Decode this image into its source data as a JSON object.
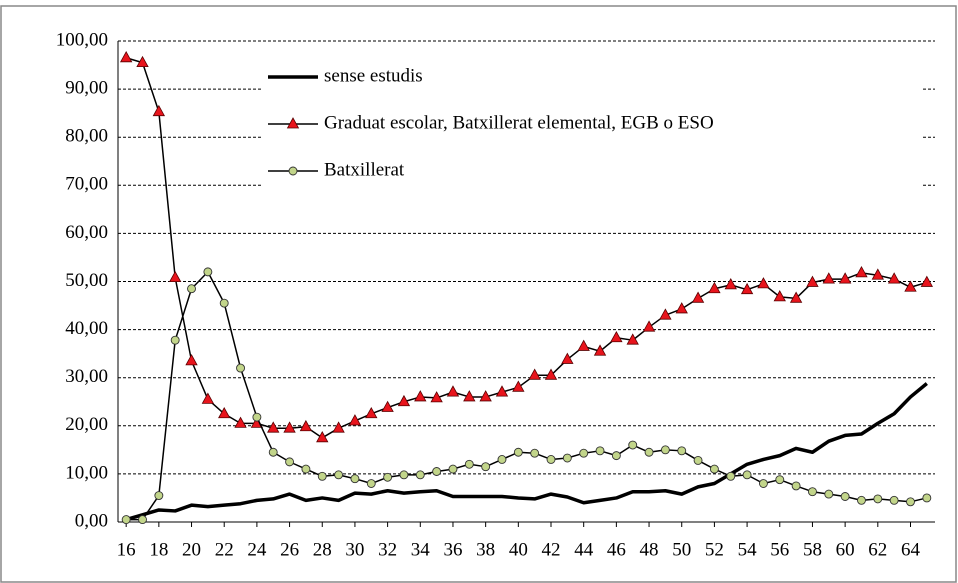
{
  "chart_data": {
    "type": "line",
    "x": [
      16,
      17,
      18,
      19,
      20,
      21,
      22,
      23,
      24,
      25,
      26,
      27,
      28,
      29,
      30,
      31,
      32,
      33,
      34,
      35,
      36,
      37,
      38,
      39,
      40,
      41,
      42,
      43,
      44,
      45,
      46,
      47,
      48,
      49,
      50,
      51,
      52,
      53,
      54,
      55,
      56,
      57,
      58,
      59,
      60,
      61,
      62,
      63,
      64,
      65
    ],
    "xlim": [
      15.5,
      65.5
    ],
    "xticks": [
      16,
      18,
      20,
      22,
      24,
      26,
      28,
      30,
      32,
      34,
      36,
      38,
      40,
      42,
      44,
      46,
      48,
      50,
      52,
      54,
      56,
      58,
      60,
      62,
      64
    ],
    "ylim": [
      0,
      100
    ],
    "yticks": [
      {
        "value": 0,
        "label": "0,00"
      },
      {
        "value": 10,
        "label": "10,00"
      },
      {
        "value": 20,
        "label": "20,00"
      },
      {
        "value": 30,
        "label": "30,00"
      },
      {
        "value": 40,
        "label": "40,00"
      },
      {
        "value": 50,
        "label": "50,00"
      },
      {
        "value": 60,
        "label": "60,00"
      },
      {
        "value": 70,
        "label": "70,00"
      },
      {
        "value": 80,
        "label": "80,00"
      },
      {
        "value": 90,
        "label": "90,00"
      },
      {
        "value": 100,
        "label": "100,00"
      }
    ],
    "grid": true,
    "series": [
      {
        "name": "sense estudis",
        "color": "#000000",
        "line_width": 3.5,
        "marker": null,
        "values": [
          0.5,
          1.5,
          2.5,
          2.3,
          3.5,
          3.2,
          3.5,
          3.8,
          4.5,
          4.8,
          5.8,
          4.5,
          5,
          4.5,
          6,
          5.8,
          6.5,
          6,
          6.3,
          6.5,
          5.3,
          5.3,
          5.3,
          5.3,
          5,
          4.8,
          5.8,
          5.2,
          4,
          4.5,
          5,
          6.3,
          6.3,
          6.5,
          5.8,
          7.3,
          8,
          10,
          12,
          13,
          13.8,
          15.3,
          14.5,
          16.8,
          18,
          18.3,
          20.5,
          22.5,
          26,
          28.8
        ]
      },
      {
        "name": "Graduat escolar, Batxillerat elemental, EGB o ESO",
        "color": "#e8141c",
        "line_width": 1.5,
        "marker": "triangle",
        "values": [
          96.5,
          95.5,
          85.3,
          50.8,
          33.5,
          25.5,
          22.5,
          20.5,
          20.5,
          19.5,
          19.5,
          19.8,
          17.5,
          19.5,
          21,
          22.5,
          23.8,
          25,
          26,
          25.8,
          27,
          26,
          26,
          27,
          28,
          30.5,
          30.5,
          33.8,
          36.5,
          35.5,
          38.3,
          37.8,
          40.5,
          43,
          44.3,
          46.5,
          48.5,
          49.3,
          48.3,
          49.5,
          46.8,
          46.5,
          49.8,
          50.5,
          50.5,
          51.8,
          51.3,
          50.5,
          48.8,
          49.8
        ]
      },
      {
        "name": "Batxillerat",
        "color": "#c2d58a",
        "line_width": 1.5,
        "marker": "circle",
        "values": [
          0.5,
          0.5,
          5.5,
          37.8,
          48.5,
          52,
          45.5,
          32,
          21.8,
          14.5,
          12.5,
          11,
          9.5,
          9.8,
          9,
          8,
          9.3,
          9.8,
          9.8,
          10.5,
          11,
          12,
          11.5,
          13,
          14.5,
          14.3,
          13,
          13.3,
          14.3,
          14.8,
          13.8,
          16,
          14.5,
          15,
          14.8,
          12.8,
          11,
          9.5,
          9.8,
          8,
          8.8,
          7.5,
          6.3,
          5.8,
          5.3,
          4.5,
          4.8,
          4.5,
          4.2,
          5
        ]
      }
    ]
  }
}
